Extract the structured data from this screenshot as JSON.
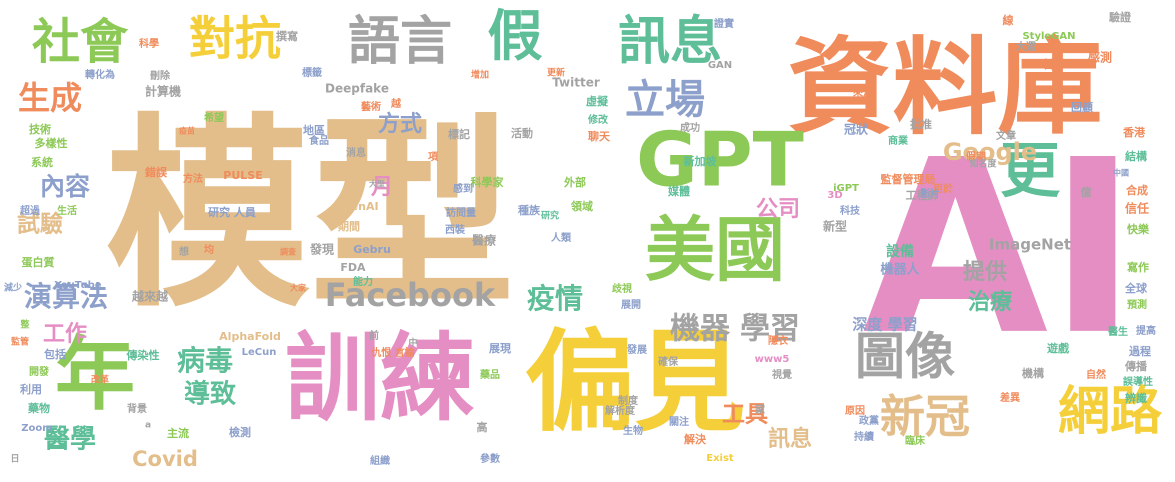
{
  "palette": {
    "tan": "#E3BE8B",
    "pink": "#E58EC4",
    "orange": "#F08B5C",
    "green": "#8DC957",
    "teal": "#5DBE98",
    "gray": "#A3A3A3",
    "blue": "#8DA0CB",
    "yellow": "#F5CF3A"
  },
  "words": [
    {
      "text": "模型",
      "color": "#E3BE8B"
    },
    {
      "text": "AI",
      "color": "#E58EC4"
    },
    {
      "text": "資料庫",
      "color": "#F08B5C"
    },
    {
      "text": "偏見",
      "color": "#F5CF3A"
    },
    {
      "text": "訓練",
      "color": "#E58EC4"
    },
    {
      "text": "GPT",
      "color": "#8DC957"
    },
    {
      "text": "美國",
      "color": "#8DC957"
    },
    {
      "text": "年",
      "color": "#8DC957"
    },
    {
      "text": "社會",
      "color": "#8DC957"
    },
    {
      "text": "對抗",
      "color": "#F5CF3A"
    },
    {
      "text": "語言",
      "color": "#A3A3A3"
    },
    {
      "text": "假",
      "color": "#5DBE98"
    },
    {
      "text": "訊息",
      "color": "#5DBE98"
    },
    {
      "text": "更",
      "color": "#5DBE98"
    },
    {
      "text": "圖像",
      "color": "#A3A3A3"
    },
    {
      "text": "網路",
      "color": "#F5CF3A"
    },
    {
      "text": "新冠",
      "color": "#E3BE8B"
    },
    {
      "text": "Facebook",
      "color": "#A3A3A3"
    },
    {
      "text": "生成",
      "color": "#F08B5C"
    },
    {
      "text": "立場",
      "color": "#8DA0CB"
    },
    {
      "text": "機器",
      "color": "#A3A3A3"
    },
    {
      "text": "學習",
      "color": "#A3A3A3"
    },
    {
      "text": "疫情",
      "color": "#5DBE98"
    },
    {
      "text": "演算法",
      "color": "#8DA0CB"
    },
    {
      "text": "病毒",
      "color": "#5DBE98"
    },
    {
      "text": "導致",
      "color": "#5DBE98"
    },
    {
      "text": "醫學",
      "color": "#5DBE98"
    },
    {
      "text": "工作",
      "color": "#E58EC4"
    },
    {
      "text": "內容",
      "color": "#8DA0CB"
    },
    {
      "text": "試驗",
      "color": "#E3BE8B"
    },
    {
      "text": "方式",
      "color": "#8DA0CB"
    },
    {
      "text": "Google",
      "color": "#E3BE8B"
    },
    {
      "text": "公司",
      "color": "#E58EC4"
    },
    {
      "text": "月",
      "color": "#E58EC4"
    },
    {
      "text": "提供",
      "color": "#A3A3A3"
    },
    {
      "text": "治療",
      "color": "#5DBE98"
    },
    {
      "text": "工具",
      "color": "#F08B5C"
    },
    {
      "text": "訊息",
      "color": "#E3BE8B"
    },
    {
      "text": "Covid",
      "color": "#E3BE8B"
    },
    {
      "text": "深度 學習",
      "color": "#8DA0CB"
    },
    {
      "text": "ImageNet",
      "color": "#A3A3A3"
    },
    {
      "text": "機器人",
      "color": "#8DA0CB"
    },
    {
      "text": "設備",
      "color": "#5DBE98"
    },
    {
      "text": "新型",
      "color": "#A3A3A3"
    },
    {
      "text": "研究 人員",
      "color": "#8DA0CB"
    },
    {
      "text": "Deepfake",
      "color": "#A3A3A3"
    },
    {
      "text": "Twitter",
      "color": "#A3A3A3"
    },
    {
      "text": "虛擬",
      "color": "#5DBE98"
    },
    {
      "text": "修改",
      "color": "#5DBE98"
    },
    {
      "text": "聊天",
      "color": "#F08B5C"
    },
    {
      "text": "標記",
      "color": "#A3A3A3"
    },
    {
      "text": "活動",
      "color": "#A3A3A3"
    },
    {
      "text": "新加坡",
      "color": "#5DBE98"
    },
    {
      "text": "媒體",
      "color": "#5DBE98"
    },
    {
      "text": "科學家",
      "color": "#8DC957"
    },
    {
      "text": "外部",
      "color": "#8DC957"
    },
    {
      "text": "種族",
      "color": "#8DA0CB"
    },
    {
      "text": "研究",
      "color": "#5DBE98"
    },
    {
      "text": "領域",
      "color": "#8DC957"
    },
    {
      "text": "感到",
      "color": "#8DA0CB"
    },
    {
      "text": "訪問量",
      "color": "#8DA0CB"
    },
    {
      "text": "西裝",
      "color": "#8DA0CB"
    },
    {
      "text": "醫療",
      "color": "#A3A3A3"
    },
    {
      "text": "人類",
      "color": "#8DA0CB"
    },
    {
      "text": "OpenAI",
      "color": "#E3BE8B"
    },
    {
      "text": "期間",
      "color": "#E3BE8B"
    },
    {
      "text": "發現",
      "color": "#A3A3A3"
    },
    {
      "text": "調查",
      "color": "#F08B5C"
    },
    {
      "text": "Gebru",
      "color": "#8DA0CB"
    },
    {
      "text": "FDA",
      "color": "#A3A3A3"
    },
    {
      "text": "能力",
      "color": "#5DBE98"
    },
    {
      "text": "PULSE",
      "color": "#F08B5C"
    },
    {
      "text": "地區",
      "color": "#8DA0CB"
    },
    {
      "text": "食品",
      "color": "#8DA0CB"
    },
    {
      "text": "消息",
      "color": "#A3A3A3"
    },
    {
      "text": "大型",
      "color": "#A3A3A3"
    },
    {
      "text": "藝術",
      "color": "#F08B5C"
    },
    {
      "text": "技術",
      "color": "#8DC957"
    },
    {
      "text": "多樣性",
      "color": "#8DC957"
    },
    {
      "text": "系統",
      "color": "#8DC957"
    },
    {
      "text": "超過",
      "color": "#8DA0CB"
    },
    {
      "text": "生活",
      "color": "#8DC957"
    },
    {
      "text": "蛋白質",
      "color": "#8DC957"
    },
    {
      "text": "YouTube",
      "color": "#8DA0CB"
    },
    {
      "text": "越來越",
      "color": "#A3A3A3"
    },
    {
      "text": "AlphaFold",
      "color": "#E3BE8B"
    },
    {
      "text": "LeCun",
      "color": "#8DA0CB"
    },
    {
      "text": "傳染性",
      "color": "#5DBE98"
    },
    {
      "text": "包括",
      "color": "#8DA0CB"
    },
    {
      "text": "開發",
      "color": "#8DC957"
    },
    {
      "text": "利用",
      "color": "#8DA0CB"
    },
    {
      "text": "藥物",
      "color": "#5DBE98"
    },
    {
      "text": "Zoom",
      "color": "#8DA0CB"
    },
    {
      "text": "背景",
      "color": "#A3A3A3"
    },
    {
      "text": "主流",
      "color": "#8DC957"
    },
    {
      "text": "檢測",
      "color": "#8DA0CB"
    },
    {
      "text": "改革",
      "color": "#F08B5C"
    },
    {
      "text": "計算機",
      "color": "#A3A3A3"
    },
    {
      "text": "希望",
      "color": "#8DC957"
    },
    {
      "text": "刪除",
      "color": "#A3A3A3"
    },
    {
      "text": "轉化為",
      "color": "#8DA0CB"
    },
    {
      "text": "科學",
      "color": "#F08B5C"
    },
    {
      "text": "撰寫",
      "color": "#A3A3A3"
    },
    {
      "text": "標籤",
      "color": "#8DA0CB"
    },
    {
      "text": "增加",
      "color": "#F08B5C"
    },
    {
      "text": "更新",
      "color": "#F08B5C"
    },
    {
      "text": "證實",
      "color": "#8DA0CB"
    },
    {
      "text": "GAN",
      "color": "#A3A3A3"
    },
    {
      "text": "線",
      "color": "#F08B5C"
    },
    {
      "text": "驗證",
      "color": "#A3A3A3"
    },
    {
      "text": "StyleGAN",
      "color": "#8DC957"
    },
    {
      "text": "大選",
      "color": "#A3A3A3"
    },
    {
      "text": "哲學",
      "color": "#F08B5C"
    },
    {
      "text": "感測",
      "color": "#F08B5C"
    },
    {
      "text": "冠狀",
      "color": "#8DA0CB"
    },
    {
      "text": "來源",
      "color": "#F08B5C"
    },
    {
      "text": "回顧",
      "color": "#8DA0CB"
    },
    {
      "text": "批准",
      "color": "#A3A3A3"
    },
    {
      "text": "香港",
      "color": "#F08B5C"
    },
    {
      "text": "文章",
      "color": "#A3A3A3"
    },
    {
      "text": "結構",
      "color": "#5DBE98"
    },
    {
      "text": "中國",
      "color": "#8DA0CB"
    },
    {
      "text": "合成",
      "color": "#F08B5C"
    },
    {
      "text": "信任",
      "color": "#F08B5C"
    },
    {
      "text": "快樂",
      "color": "#8DC957"
    },
    {
      "text": "寫作",
      "color": "#8DC957"
    },
    {
      "text": "全球",
      "color": "#8DA0CB"
    },
    {
      "text": "預測",
      "color": "#8DC957"
    },
    {
      "text": "提高",
      "color": "#8DA0CB"
    },
    {
      "text": "過程",
      "color": "#8DA0CB"
    },
    {
      "text": "傳播",
      "color": "#A3A3A3"
    },
    {
      "text": "誤導性",
      "color": "#5DBE98"
    },
    {
      "text": "辨識",
      "color": "#5DBE98"
    },
    {
      "text": "自然",
      "color": "#F08B5C"
    },
    {
      "text": "遊戲",
      "color": "#5DBE98"
    },
    {
      "text": "醫生",
      "color": "#5DBE98"
    },
    {
      "text": "機構",
      "color": "#A3A3A3"
    },
    {
      "text": "監督管理局",
      "color": "#F08B5C"
    },
    {
      "text": "iGPT",
      "color": "#8DC957"
    },
    {
      "text": "工程師",
      "color": "#A3A3A3"
    },
    {
      "text": "商業",
      "color": "#5DBE98"
    },
    {
      "text": "假期",
      "color": "#F08B5C"
    },
    {
      "text": "知名度",
      "color": "#A3A3A3"
    },
    {
      "text": "億",
      "color": "#A3A3A3"
    },
    {
      "text": "真實",
      "color": "#E58EC4"
    },
    {
      "text": "用於",
      "color": "#F08B5C"
    },
    {
      "text": "影片",
      "color": "#8DA0CB"
    },
    {
      "text": "3D",
      "color": "#E58EC4"
    },
    {
      "text": "科技",
      "color": "#8DA0CB"
    },
    {
      "text": "成功",
      "color": "#A3A3A3"
    },
    {
      "text": "確保",
      "color": "#A3A3A3"
    },
    {
      "text": "www5",
      "color": "#E58EC4"
    },
    {
      "text": "視覺",
      "color": "#A3A3A3"
    },
    {
      "text": "隱衣",
      "color": "#F08B5C"
    },
    {
      "text": "家",
      "color": "#A3A3A3"
    },
    {
      "text": "原因",
      "color": "#F08B5C"
    },
    {
      "text": "政黨",
      "color": "#8DA0CB"
    },
    {
      "text": "持續",
      "color": "#8DA0CB"
    },
    {
      "text": "臨床",
      "color": "#8DC957"
    },
    {
      "text": "差異",
      "color": "#F08B5C"
    },
    {
      "text": "展現",
      "color": "#8DA0CB"
    },
    {
      "text": "前",
      "color": "#A3A3A3"
    },
    {
      "text": "仇恨 言論",
      "color": "#F08B5C"
    },
    {
      "text": "發展",
      "color": "#8DA0CB"
    },
    {
      "text": "展開",
      "color": "#8DA0CB"
    },
    {
      "text": "制度",
      "color": "#A3A3A3"
    },
    {
      "text": "解析度",
      "color": "#A3A3A3"
    },
    {
      "text": "生物",
      "color": "#8DA0CB"
    },
    {
      "text": "關注",
      "color": "#8DA0CB"
    },
    {
      "text": "參數",
      "color": "#8DA0CB"
    },
    {
      "text": "高",
      "color": "#A3A3A3"
    },
    {
      "text": "組織",
      "color": "#8DA0CB"
    },
    {
      "text": "Exist",
      "color": "#F5CF3A"
    },
    {
      "text": "解決",
      "color": "#F08B5C"
    },
    {
      "text": "想",
      "color": "#A3A3A3"
    },
    {
      "text": "均",
      "color": "#F08B5C"
    },
    {
      "text": "大家",
      "color": "#F08B5C"
    },
    {
      "text": "整",
      "color": "#8DC957"
    },
    {
      "text": "疫苗",
      "color": "#F08B5C"
    },
    {
      "text": "錯誤",
      "color": "#F08B5C"
    },
    {
      "text": "方法",
      "color": "#F08B5C"
    },
    {
      "text": "歧視",
      "color": "#8DC957"
    },
    {
      "text": "藥品",
      "color": "#8DC957"
    },
    {
      "text": "中",
      "color": "#A3A3A3"
    },
    {
      "text": "日",
      "color": "#A3A3A3"
    },
    {
      "text": "a",
      "color": "#A3A3A3"
    },
    {
      "text": "監管",
      "color": "#F08B5C"
    },
    {
      "text": "減少",
      "color": "#8DA0CB"
    },
    {
      "text": "越",
      "color": "#F08B5C"
    },
    {
      "text": "項",
      "color": "#F08B5C"
    }
  ]
}
